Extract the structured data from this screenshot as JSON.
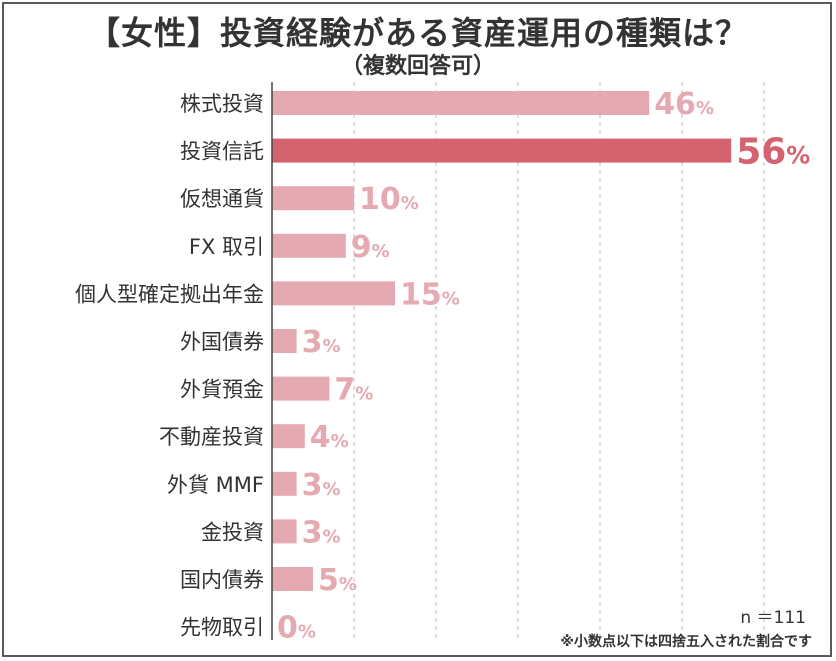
{
  "header": {
    "title": "【女性】投資経験がある資産運用の種類は？",
    "subtitle": "（複数回答可）"
  },
  "notes": {
    "sample_size": "n ＝111",
    "footnote": "※小数点以下は四捨五入された割合です"
  },
  "colors": {
    "bar": "#e5a9b2",
    "bar_highlight": "#d4626f",
    "label": "#e5a9b2",
    "label_highlight": "#d4626f",
    "text": "#333333",
    "gridline": "#bbbbbb"
  },
  "chart_data": {
    "type": "bar",
    "orientation": "horizontal",
    "title": "【女性】投資経験がある資産運用の種類は？",
    "subtitle": "（複数回答可）",
    "categories": [
      "株式投資",
      "投資信託",
      "仮想通貨",
      "FX 取引",
      "個人型確定拠出年金",
      "外国債券",
      "外貨預金",
      "不動産投資",
      "外貨 MMF",
      "金投資",
      "国内債券",
      "先物取引"
    ],
    "values": [
      46,
      56,
      10,
      9,
      15,
      3,
      7,
      4,
      3,
      3,
      5,
      0
    ],
    "unit": "%",
    "highlight_index": 1,
    "xlim": [
      0,
      70
    ],
    "gridlines": "vertical dashed",
    "legend": "none"
  }
}
